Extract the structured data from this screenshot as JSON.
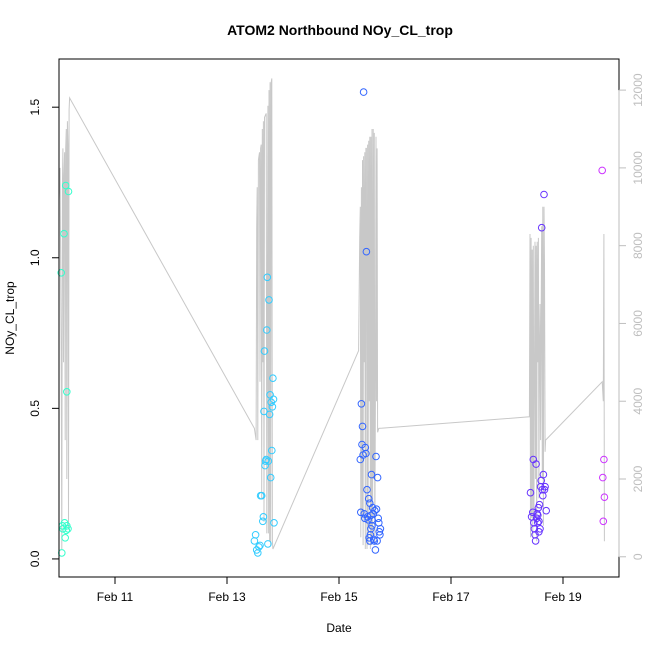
{
  "chart_data": {
    "type": "scatter",
    "title": "ATOM2 Northbound NOy_CL_trop",
    "xlabel": "Date",
    "ylabel": "NOy_CL_trop",
    "xlim": [
      0,
      10
    ],
    "ylim": [
      -0.06,
      1.66
    ],
    "x_ticks": [
      {
        "value": 1,
        "label": "Feb 11"
      },
      {
        "value": 3,
        "label": "Feb 13"
      },
      {
        "value": 5,
        "label": "Feb 15"
      },
      {
        "value": 7,
        "label": "Feb 17"
      },
      {
        "value": 9,
        "label": "Feb 19"
      }
    ],
    "y_ticks": [
      {
        "value": 0.0,
        "label": "0.0"
      },
      {
        "value": 0.5,
        "label": "0.5"
      },
      {
        "value": 1.0,
        "label": "1.0"
      },
      {
        "value": 1.5,
        "label": "1.5"
      }
    ],
    "y2_lim": [
      -520,
      12800
    ],
    "y2_ticks": [
      {
        "value": 0,
        "label": "0"
      },
      {
        "value": 2000,
        "label": "2000"
      },
      {
        "value": 4000,
        "label": "4000"
      },
      {
        "value": 6000,
        "label": "6000"
      },
      {
        "value": 8000,
        "label": "8000"
      },
      {
        "value": 10000,
        "label": "10000"
      },
      {
        "value": 12000,
        "label": "12000"
      }
    ],
    "grid": false,
    "series": [
      {
        "color": "#33ffcc",
        "points": [
          [
            0.04,
            0.95
          ],
          [
            0.05,
            0.02
          ],
          [
            0.06,
            0.11
          ],
          [
            0.07,
            0.1
          ],
          [
            0.09,
            1.08
          ],
          [
            0.1,
            0.12
          ],
          [
            0.11,
            0.07
          ],
          [
            0.12,
            1.24
          ],
          [
            0.13,
            0.095
          ],
          [
            0.14,
            0.11
          ],
          [
            0.16,
            0.1
          ],
          [
            0.17,
            1.22
          ],
          [
            0.14,
            0.555
          ]
        ]
      },
      {
        "color": "#33ccff",
        "points": [
          [
            3.49,
            0.06
          ],
          [
            3.51,
            0.08
          ],
          [
            3.53,
            0.03
          ],
          [
            3.55,
            0.02
          ],
          [
            3.57,
            0.04
          ],
          [
            3.59,
            0.045
          ],
          [
            3.6,
            0.21
          ],
          [
            3.62,
            0.21
          ],
          [
            3.64,
            0.125
          ],
          [
            3.65,
            0.14
          ],
          [
            3.66,
            0.49
          ],
          [
            3.67,
            0.69
          ],
          [
            3.68,
            0.31
          ],
          [
            3.69,
            0.325
          ],
          [
            3.7,
            0.33
          ],
          [
            3.71,
            0.76
          ],
          [
            3.72,
            0.935
          ],
          [
            3.73,
            0.05
          ],
          [
            3.74,
            0.325
          ],
          [
            3.75,
            0.86
          ],
          [
            3.76,
            0.48
          ],
          [
            3.77,
            0.545
          ],
          [
            3.78,
            0.27
          ],
          [
            3.79,
            0.52
          ],
          [
            3.8,
            0.36
          ],
          [
            3.81,
            0.505
          ],
          [
            3.82,
            0.6
          ],
          [
            3.83,
            0.53
          ],
          [
            3.84,
            0.12
          ]
        ]
      },
      {
        "color": "#3366ff",
        "points": [
          [
            5.38,
            0.33
          ],
          [
            5.39,
            0.155
          ],
          [
            5.4,
            0.515
          ],
          [
            5.41,
            0.38
          ],
          [
            5.42,
            0.44
          ],
          [
            5.43,
            0.345
          ],
          [
            5.44,
            1.55
          ],
          [
            5.45,
            0.15
          ],
          [
            5.46,
            0.135
          ],
          [
            5.47,
            0.37
          ],
          [
            5.48,
            0.35
          ],
          [
            5.49,
            1.02
          ],
          [
            5.5,
            0.23
          ],
          [
            5.51,
            0.14
          ],
          [
            5.52,
            0.13
          ],
          [
            5.53,
            0.2
          ],
          [
            5.54,
            0.07
          ],
          [
            5.55,
            0.06
          ],
          [
            5.56,
            0.08
          ],
          [
            5.57,
            0.1
          ],
          [
            5.58,
            0.28
          ],
          [
            5.59,
            0.11
          ],
          [
            5.6,
            0.17
          ],
          [
            5.61,
            0.15
          ],
          [
            5.62,
            0.065
          ],
          [
            5.63,
            0.06
          ],
          [
            5.64,
            0.16
          ],
          [
            5.65,
            0.03
          ],
          [
            5.66,
            0.34
          ],
          [
            5.67,
            0.165
          ],
          [
            5.68,
            0.06
          ],
          [
            5.69,
            0.27
          ],
          [
            5.7,
            0.135
          ],
          [
            5.71,
            0.12
          ],
          [
            5.72,
            0.09
          ],
          [
            5.73,
            0.08
          ],
          [
            5.74,
            0.1
          ],
          [
            5.55,
            0.185
          ],
          [
            5.57,
            0.145
          ],
          [
            5.59,
            0.13
          ]
        ]
      },
      {
        "color": "#6633ff",
        "points": [
          [
            8.42,
            0.22
          ],
          [
            8.44,
            0.14
          ],
          [
            8.46,
            0.155
          ],
          [
            8.47,
            0.33
          ],
          [
            8.48,
            0.12
          ],
          [
            8.49,
            0.1
          ],
          [
            8.5,
            0.08
          ],
          [
            8.51,
            0.06
          ],
          [
            8.52,
            0.315
          ],
          [
            8.53,
            0.135
          ],
          [
            8.54,
            0.15
          ],
          [
            8.55,
            0.145
          ],
          [
            8.56,
            0.17
          ],
          [
            8.57,
            0.125
          ],
          [
            8.58,
            0.18
          ],
          [
            8.59,
            0.1
          ],
          [
            8.6,
            0.24
          ],
          [
            8.61,
            0.26
          ],
          [
            8.62,
            1.1
          ],
          [
            8.63,
            0.23
          ],
          [
            8.64,
            0.21
          ],
          [
            8.65,
            0.28
          ],
          [
            8.66,
            1.21
          ],
          [
            8.67,
            0.23
          ],
          [
            8.68,
            0.24
          ],
          [
            8.7,
            0.16
          ],
          [
            8.55,
            0.12
          ],
          [
            8.57,
            0.09
          ]
        ]
      },
      {
        "color": "#cc33ff",
        "points": [
          [
            9.7,
            1.29
          ],
          [
            9.71,
            0.27
          ],
          [
            9.72,
            0.125
          ],
          [
            9.73,
            0.33
          ],
          [
            9.74,
            0.205
          ]
        ]
      }
    ],
    "altitude_line": [
      [
        0.0,
        9200
      ],
      [
        0.02,
        10000
      ],
      [
        0.04,
        5200
      ],
      [
        0.05,
        200
      ],
      [
        0.06,
        9500
      ],
      [
        0.07,
        10500
      ],
      [
        0.08,
        5000
      ],
      [
        0.09,
        9800
      ],
      [
        0.1,
        10400
      ],
      [
        0.11,
        3000
      ],
      [
        0.12,
        10500
      ],
      [
        0.13,
        11000
      ],
      [
        0.14,
        2000
      ],
      [
        0.15,
        11200
      ],
      [
        0.16,
        10600
      ],
      [
        0.17,
        700
      ],
      [
        0.18,
        11500
      ],
      [
        0.19,
        11800
      ],
      [
        3.49,
        3300
      ],
      [
        3.52,
        3000
      ],
      [
        3.53,
        8500
      ],
      [
        3.54,
        9500
      ],
      [
        3.55,
        3000
      ],
      [
        3.56,
        10200
      ],
      [
        3.58,
        10400
      ],
      [
        3.59,
        4500
      ],
      [
        3.6,
        10500
      ],
      [
        3.61,
        10600
      ],
      [
        3.62,
        1500
      ],
      [
        3.63,
        11000
      ],
      [
        3.64,
        5000
      ],
      [
        3.65,
        11200
      ],
      [
        3.66,
        900
      ],
      [
        3.67,
        11300
      ],
      [
        3.7,
        11400
      ],
      [
        3.71,
        600
      ],
      [
        3.73,
        11600
      ],
      [
        3.74,
        600
      ],
      [
        3.75,
        12000
      ],
      [
        3.76,
        400
      ],
      [
        3.77,
        12200
      ],
      [
        3.78,
        300
      ],
      [
        3.79,
        12200
      ],
      [
        3.8,
        12300
      ],
      [
        3.81,
        400
      ],
      [
        3.82,
        200
      ],
      [
        5.35,
        5300
      ],
      [
        5.37,
        8200
      ],
      [
        5.38,
        9000
      ],
      [
        5.39,
        500
      ],
      [
        5.4,
        9500
      ],
      [
        5.41,
        1000
      ],
      [
        5.42,
        10200
      ],
      [
        5.43,
        300
      ],
      [
        5.44,
        10300
      ],
      [
        5.45,
        5000
      ],
      [
        5.46,
        10400
      ],
      [
        5.47,
        200
      ],
      [
        5.48,
        10500
      ],
      [
        5.49,
        10500
      ],
      [
        5.5,
        200
      ],
      [
        5.51,
        10600
      ],
      [
        5.52,
        300
      ],
      [
        5.53,
        10700
      ],
      [
        5.54,
        4000
      ],
      [
        5.55,
        10800
      ],
      [
        5.56,
        200
      ],
      [
        5.57,
        10800
      ],
      [
        5.58,
        300
      ],
      [
        5.59,
        11000
      ],
      [
        5.6,
        500
      ],
      [
        5.61,
        11000
      ],
      [
        5.62,
        2000
      ],
      [
        5.63,
        10900
      ],
      [
        5.64,
        300
      ],
      [
        5.65,
        4000
      ],
      [
        5.66,
        10800
      ],
      [
        5.67,
        4000
      ],
      [
        5.68,
        10500
      ],
      [
        5.69,
        3200
      ],
      [
        5.71,
        3300
      ],
      [
        8.4,
        3600
      ],
      [
        8.41,
        8300
      ],
      [
        8.42,
        500
      ],
      [
        8.43,
        8200
      ],
      [
        8.44,
        1000
      ],
      [
        8.45,
        7900
      ],
      [
        8.46,
        500
      ],
      [
        8.47,
        8000
      ],
      [
        8.48,
        1000
      ],
      [
        8.5,
        8100
      ],
      [
        8.51,
        2000
      ],
      [
        8.52,
        8000
      ],
      [
        8.53,
        400
      ],
      [
        8.54,
        8100
      ],
      [
        8.55,
        5000
      ],
      [
        8.56,
        8200
      ],
      [
        8.57,
        1500
      ],
      [
        8.58,
        5500
      ],
      [
        8.59,
        6500
      ],
      [
        8.6,
        3000
      ],
      [
        8.61,
        6500
      ],
      [
        8.62,
        8500
      ],
      [
        8.63,
        2000
      ],
      [
        8.64,
        9000
      ],
      [
        8.65,
        800
      ],
      [
        8.66,
        9000
      ],
      [
        8.67,
        7500
      ],
      [
        8.68,
        2700
      ],
      [
        8.69,
        3000
      ],
      [
        9.7,
        4500
      ],
      [
        9.72,
        4000
      ],
      [
        9.73,
        8300
      ],
      [
        9.74,
        400
      ]
    ]
  }
}
